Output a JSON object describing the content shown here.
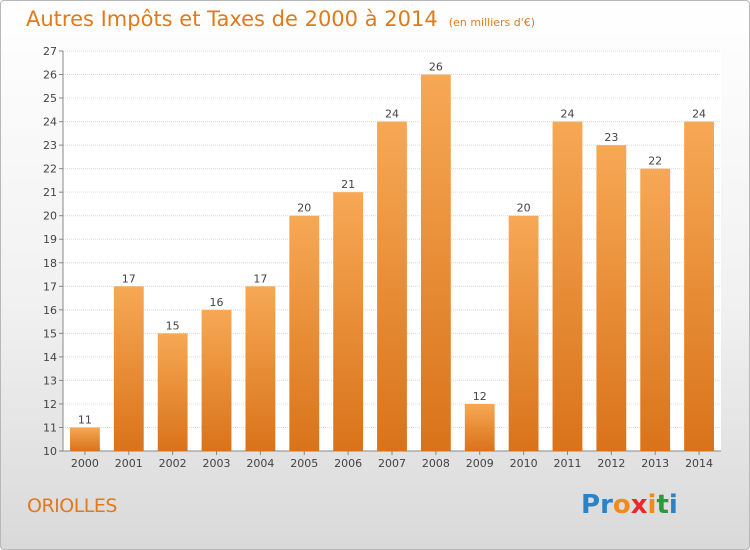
{
  "header": {
    "title": "Autres Impôts et Taxes de 2000 à 2014",
    "subtitle": "(en milliers d'€)"
  },
  "footer": {
    "commune": "ORIOLLES",
    "logo": {
      "letters": [
        "P",
        "r",
        "o",
        "x",
        "i",
        "t",
        "i"
      ],
      "colors": [
        "#2a82c9",
        "#2a82c9",
        "#f08a1a",
        "#e8282a",
        "#f08a1a",
        "#2a9a3a",
        "#2a82c9"
      ]
    }
  },
  "colors": {
    "accent": "#e07a1c",
    "bar_light": "#f7a855",
    "bar_dark": "#d9731a"
  },
  "chart_data": {
    "type": "bar",
    "title": "Autres Impôts et Taxes de 2000 à 2014",
    "subtitle": "(en milliers d'€)",
    "categories": [
      "2000",
      "2001",
      "2002",
      "2003",
      "2004",
      "2005",
      "2006",
      "2007",
      "2008",
      "2009",
      "2010",
      "2011",
      "2012",
      "2013",
      "2014"
    ],
    "values": [
      11,
      17,
      15,
      16,
      17,
      20,
      21,
      24,
      26,
      12,
      20,
      24,
      23,
      22,
      24
    ],
    "ylim": [
      10,
      27
    ],
    "yticks": [
      10,
      11,
      12,
      13,
      14,
      15,
      16,
      17,
      18,
      19,
      20,
      21,
      22,
      23,
      24,
      25,
      26,
      27
    ],
    "grid": true
  }
}
